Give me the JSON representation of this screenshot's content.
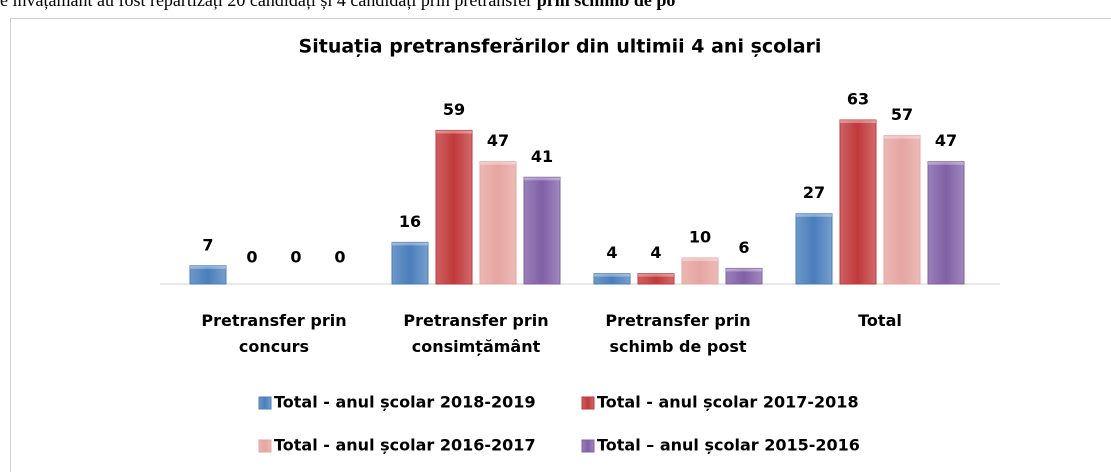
{
  "doc_text": {
    "plain": "e învățământ au fost repartizați 20 candidați și 4 candidați prin pretransfer ",
    "bold": "prin schimb de po"
  },
  "chart_data": {
    "type": "bar",
    "title": "Situația pretransferărilor din ultimii 4 ani școlari",
    "categories": [
      "Pretransfer prin concurs",
      "Pretransfer prin consimțământ",
      "Pretransfer prin schimb de post",
      "Total"
    ],
    "series": [
      {
        "name": "Total - anul școlar 2018-2019",
        "color": "#4a7ebb",
        "values": [
          7,
          16,
          4,
          27
        ]
      },
      {
        "name": "Total - anul școlar 2017-2018",
        "color": "#c0393b",
        "values": [
          0,
          59,
          4,
          63
        ]
      },
      {
        "name": "Total - anul școlar 2016-2017",
        "color": "#e6a5a0",
        "values": [
          0,
          47,
          10,
          57
        ]
      },
      {
        "name": "Total – anul școlar 2015-2016",
        "color": "#8060a6",
        "values": [
          0,
          41,
          6,
          47
        ]
      }
    ]
  }
}
